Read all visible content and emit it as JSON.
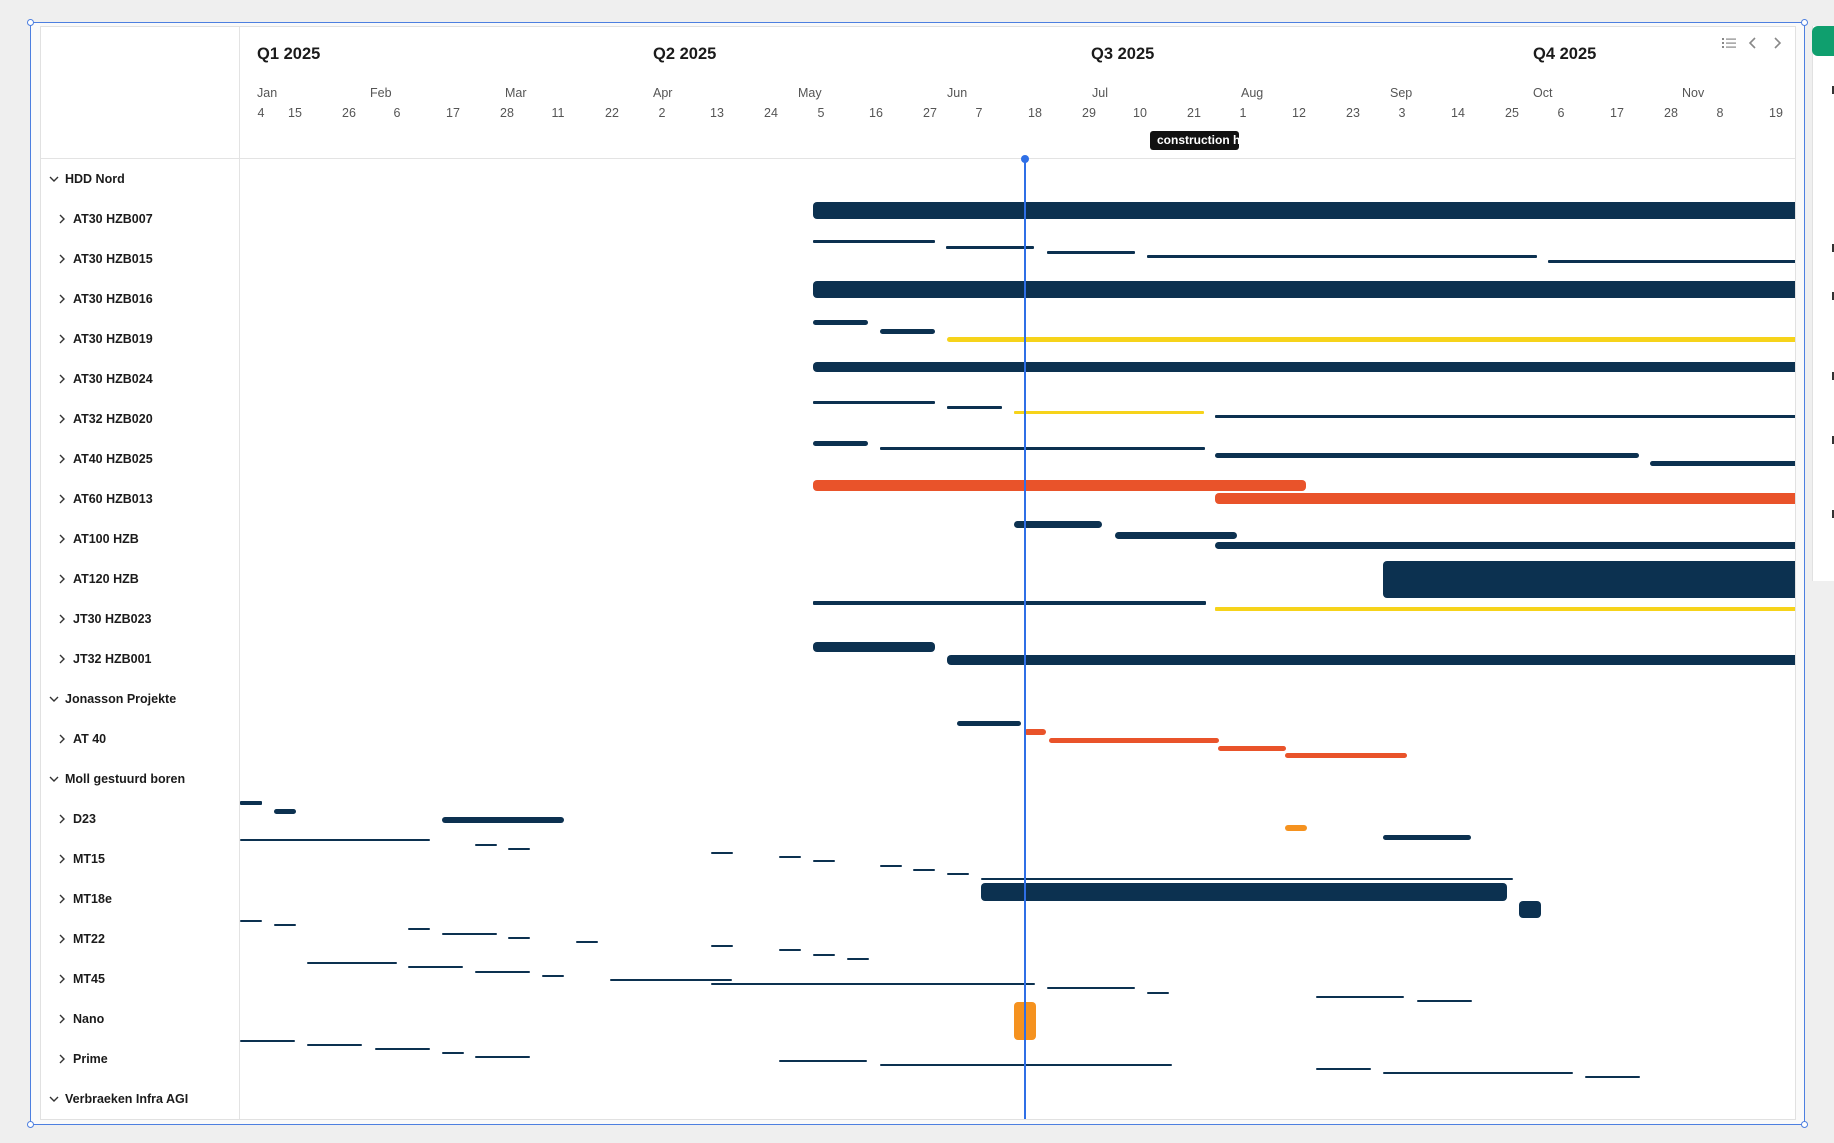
{
  "colors": {
    "navy": "#0c3150",
    "yellow": "#f6d31a",
    "red": "#e9532a",
    "orange": "#f5921f",
    "today": "#2f6fe6",
    "grid": "#e3e3e3",
    "accent_green": "#0f9f6e"
  },
  "timeline": {
    "quarters": [
      "Q1 2025",
      "Q2 2025",
      "Q3 2025",
      "Q4 2025"
    ],
    "months": [
      "Jan",
      "Feb",
      "Mar",
      "Apr",
      "May",
      "Jun",
      "Jul",
      "Aug",
      "Sep",
      "Oct",
      "Nov"
    ],
    "days": [
      "4",
      "15",
      "26",
      "6",
      "17",
      "28",
      "11",
      "22",
      "2",
      "13",
      "24",
      "5",
      "16",
      "27",
      "7",
      "18",
      "29",
      "10",
      "21",
      "1",
      "12",
      "23",
      "3",
      "14",
      "25",
      "6",
      "17",
      "28",
      "8",
      "19"
    ]
  },
  "toolbar": {
    "icons": [
      "list-icon",
      "chevron-left-icon",
      "chevron-right-icon"
    ]
  },
  "tooltip": {
    "text": "construction h"
  },
  "rows": [
    {
      "label": "HDD Nord",
      "type": "group"
    },
    {
      "label": "AT30 HZB007",
      "type": "item"
    },
    {
      "label": "AT30 HZB015",
      "type": "item"
    },
    {
      "label": "AT30 HZB016",
      "type": "item"
    },
    {
      "label": "AT30 HZB019",
      "type": "item"
    },
    {
      "label": "AT30 HZB024",
      "type": "item"
    },
    {
      "label": "AT32 HZB020",
      "type": "item"
    },
    {
      "label": "AT40 HZB025",
      "type": "item"
    },
    {
      "label": "AT60 HZB013",
      "type": "item"
    },
    {
      "label": "AT100 HZB",
      "type": "item"
    },
    {
      "label": "AT120 HZB",
      "type": "item"
    },
    {
      "label": "JT30 HZB023",
      "type": "item"
    },
    {
      "label": "JT32 HZB001",
      "type": "item"
    },
    {
      "label": "Jonasson Projekte",
      "type": "group"
    },
    {
      "label": "AT 40",
      "type": "item"
    },
    {
      "label": "Moll gestuurd boren",
      "type": "group"
    },
    {
      "label": "D23",
      "type": "item"
    },
    {
      "label": "MT15",
      "type": "item"
    },
    {
      "label": "MT18e",
      "type": "item"
    },
    {
      "label": "MT22",
      "type": "item"
    },
    {
      "label": "MT45",
      "type": "item"
    },
    {
      "label": "Nano",
      "type": "item"
    },
    {
      "label": "Prime",
      "type": "item"
    },
    {
      "label": "Verbraeken Infra AGI",
      "type": "group"
    }
  ]
}
